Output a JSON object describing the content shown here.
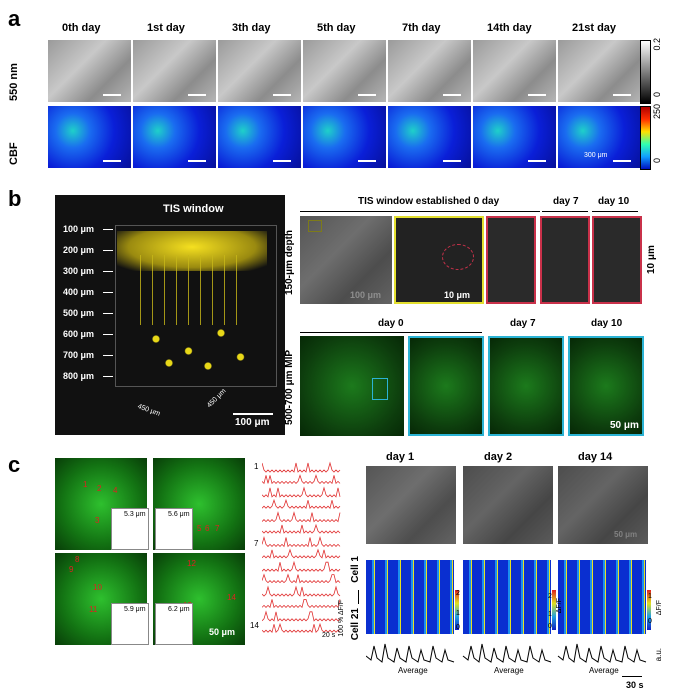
{
  "panel_a": {
    "label": "a",
    "days": [
      "0th day",
      "1st day",
      "3th day",
      "5th day",
      "7th day",
      "14th day",
      "21st day"
    ],
    "row_labels": [
      "550 nm",
      "CBF"
    ],
    "colorbar_top": {
      "max": "0.2",
      "min": "0"
    },
    "colorbar_bottom": {
      "max": "250",
      "min": "0"
    },
    "scale_text": "300 μm"
  },
  "panel_b": {
    "label": "b",
    "tis_title": "TIS window",
    "depths": [
      "100 μm",
      "200 μm",
      "300 μm",
      "400 μm",
      "500 μm",
      "600 μm",
      "700 μm",
      "800 μm"
    ],
    "axis_x": "450 μm",
    "axis_y": "450 μm",
    "scale_3d": "100 μm",
    "established": "TIS window established 0 day",
    "day7": "day 7",
    "day10": "day 10",
    "row1_label": "150-μm depth",
    "scale_100": "100 μm",
    "scale_10": "10 μm",
    "right_10": "10 μm",
    "row2_label": "500-700 μm MIP",
    "day0": "day 0",
    "day7b": "day 7",
    "day10b": "day 10",
    "scale_50": "50 μm"
  },
  "panel_c": {
    "label": "c",
    "roi_numbers": [
      "1",
      "2",
      "3",
      "4",
      "5",
      "6",
      "7",
      "8",
      "9",
      "10",
      "11",
      "12",
      "13",
      "14"
    ],
    "inset_values": [
      "5.3 μm",
      "5.6 μm",
      "5.9 μm",
      "6.2 μm"
    ],
    "scale_50": "50 μm",
    "trace_top": "1",
    "trace_mid": "7",
    "trace_bottom": "14",
    "trace_scale": "100 % ΔF/F",
    "trace_time": "20 s",
    "days": [
      "day 1",
      "day 2",
      "day 14"
    ],
    "scale_img": "50 μm",
    "cell_top": "Cell 1",
    "cell_bottom": "Cell 21",
    "cb_label": "ΔF/F",
    "cb_ticks_a": [
      "2",
      "1",
      "0"
    ],
    "cb_ticks_b": [
      "2",
      "1",
      "0"
    ],
    "cb_ticks_c": [
      "1",
      "0"
    ],
    "average": "Average",
    "au": "a.u.",
    "time_scale": "30 s"
  }
}
